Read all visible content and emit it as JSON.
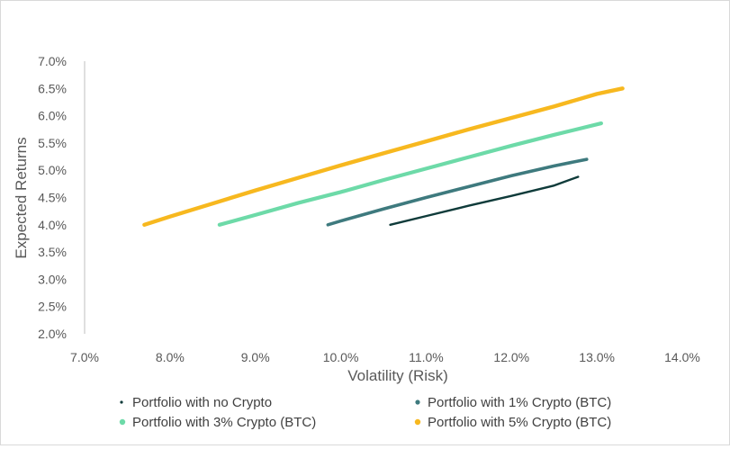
{
  "chart_data": {
    "type": "line",
    "title": "",
    "xlabel": "Volatility (Risk)",
    "ylabel": "Expected Returns",
    "xlim": [
      7.0,
      14.0
    ],
    "ylim": [
      2.0,
      7.0
    ],
    "x_ticks": [
      "7.0%",
      "8.0%",
      "9.0%",
      "10.0%",
      "11.0%",
      "12.0%",
      "13.0%",
      "14.0%"
    ],
    "y_ticks": [
      "2.0%",
      "2.5%",
      "3.0%",
      "3.5%",
      "4.0%",
      "4.5%",
      "5.0%",
      "5.5%",
      "6.0%",
      "6.5%",
      "7.0%"
    ],
    "grid": false,
    "legend_position": "bottom",
    "series": [
      {
        "name": "Portfolio with no Crypto",
        "color": "#0f3b3a",
        "x": [
          10.58,
          11.0,
          11.5,
          12.0,
          12.5,
          12.78
        ],
        "y": [
          4.0,
          4.16,
          4.35,
          4.53,
          4.72,
          4.88
        ]
      },
      {
        "name": "Portfolio with 1% Crypto (BTC)",
        "color": "#3e7a7e",
        "x": [
          9.85,
          10.0,
          10.5,
          11.0,
          11.5,
          12.0,
          12.5,
          12.88
        ],
        "y": [
          4.0,
          4.07,
          4.29,
          4.5,
          4.7,
          4.9,
          5.08,
          5.2
        ]
      },
      {
        "name": "Portfolio with 3% Crypto (BTC)",
        "color": "#6ddaa8",
        "x": [
          8.58,
          9.0,
          9.5,
          10.0,
          10.5,
          11.0,
          11.5,
          12.0,
          12.5,
          13.05
        ],
        "y": [
          4.0,
          4.18,
          4.4,
          4.6,
          4.82,
          5.03,
          5.24,
          5.45,
          5.65,
          5.86
        ]
      },
      {
        "name": "Portfolio with 5% Crypto (BTC)",
        "color": "#f7b81f",
        "x": [
          7.7,
          8.0,
          8.5,
          9.0,
          9.5,
          10.0,
          10.5,
          11.0,
          11.5,
          12.0,
          12.5,
          13.0,
          13.3
        ],
        "y": [
          4.0,
          4.15,
          4.39,
          4.63,
          4.86,
          5.09,
          5.31,
          5.53,
          5.75,
          5.96,
          6.17,
          6.4,
          6.5
        ]
      }
    ]
  }
}
